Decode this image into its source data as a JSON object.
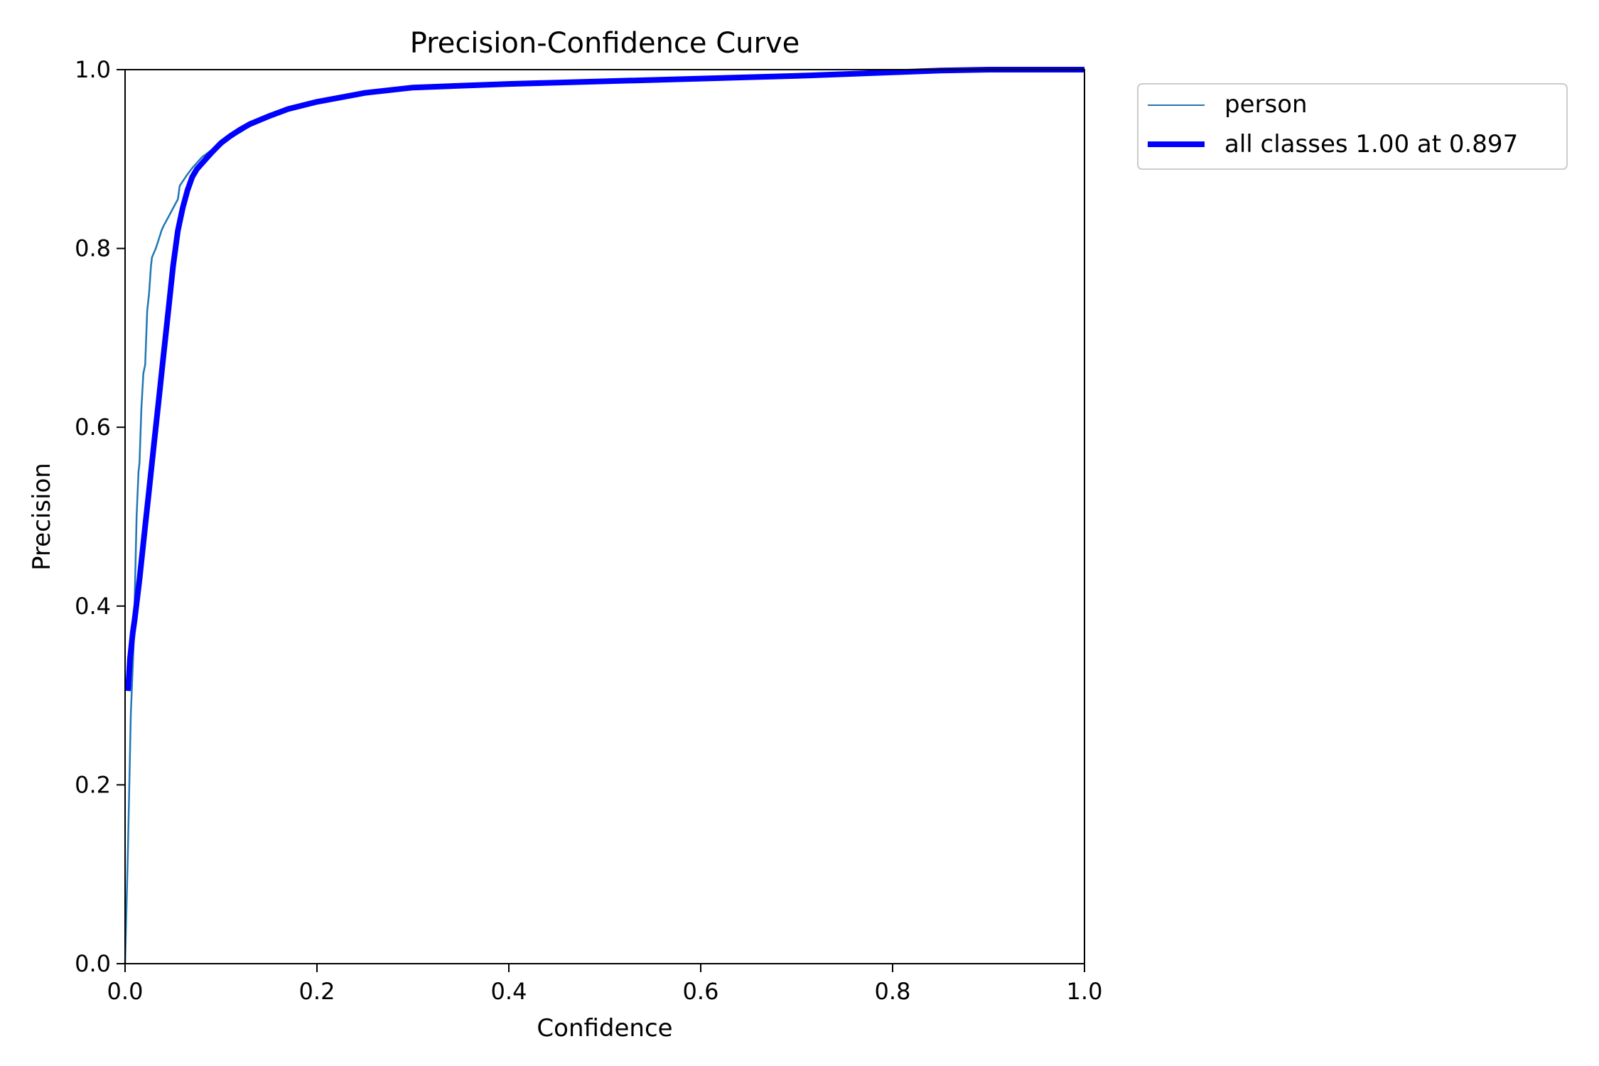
{
  "chart_data": {
    "type": "line",
    "title": "Precision-Confidence Curve",
    "xlabel": "Confidence",
    "ylabel": "Precision",
    "xlim": [
      0,
      1
    ],
    "ylim": [
      0,
      1
    ],
    "xticks": [
      0,
      0.2,
      0.4,
      0.6,
      0.8,
      1.0
    ],
    "yticks": [
      0,
      0.2,
      0.4,
      0.6,
      0.8,
      1.0
    ],
    "xtick_labels": [
      "0.0",
      "0.2",
      "0.4",
      "0.6",
      "0.8",
      "1.0"
    ],
    "ytick_labels": [
      "0.0",
      "0.2",
      "0.4",
      "0.6",
      "0.8",
      "1.0"
    ],
    "grid": false,
    "legend_position": "outside-top-right",
    "series": [
      {
        "name": "person",
        "color": "#1f77b4",
        "x": [
          0,
          0.003,
          0.006,
          0.009,
          0.012,
          0.014,
          0.015,
          0.017,
          0.019,
          0.021,
          0.023,
          0.025,
          0.027,
          0.028,
          0.03,
          0.032,
          0.035,
          0.038,
          0.04,
          0.045,
          0.05,
          0.055,
          0.057,
          0.06,
          0.065,
          0.07,
          0.075,
          0.08,
          0.09,
          0.1,
          0.11,
          0.12,
          0.13,
          0.15,
          0.17,
          0.2,
          0.25,
          0.3,
          0.4,
          0.5,
          0.6,
          0.7,
          0.8,
          0.85,
          0.9,
          0.95,
          1.0
        ],
        "y": [
          0.0,
          0.13,
          0.28,
          0.36,
          0.5,
          0.55,
          0.56,
          0.62,
          0.66,
          0.67,
          0.73,
          0.75,
          0.78,
          0.79,
          0.795,
          0.8,
          0.81,
          0.82,
          0.825,
          0.835,
          0.845,
          0.855,
          0.87,
          0.875,
          0.883,
          0.89,
          0.896,
          0.902,
          0.91,
          0.918,
          0.925,
          0.93,
          0.937,
          0.948,
          0.956,
          0.965,
          0.975,
          0.981,
          0.985,
          0.988,
          0.991,
          0.994,
          0.997,
          0.999,
          1.0,
          1.0,
          1.0
        ]
      },
      {
        "name": "all classes 1.00 at 0.897",
        "color": "#0000ff",
        "x": [
          0.003,
          0.005,
          0.008,
          0.01,
          0.015,
          0.02,
          0.025,
          0.03,
          0.035,
          0.04,
          0.045,
          0.05,
          0.055,
          0.06,
          0.065,
          0.07,
          0.075,
          0.08,
          0.09,
          0.1,
          0.11,
          0.12,
          0.13,
          0.15,
          0.17,
          0.2,
          0.25,
          0.3,
          0.4,
          0.5,
          0.6,
          0.7,
          0.8,
          0.85,
          0.9,
          0.95,
          1.0
        ],
        "y": [
          0.305,
          0.34,
          0.37,
          0.385,
          0.43,
          0.48,
          0.53,
          0.58,
          0.63,
          0.68,
          0.73,
          0.78,
          0.82,
          0.845,
          0.865,
          0.88,
          0.889,
          0.895,
          0.907,
          0.918,
          0.926,
          0.933,
          0.939,
          0.948,
          0.956,
          0.964,
          0.974,
          0.98,
          0.984,
          0.987,
          0.99,
          0.993,
          0.997,
          0.999,
          1.0,
          1.0,
          1.0
        ]
      }
    ]
  }
}
